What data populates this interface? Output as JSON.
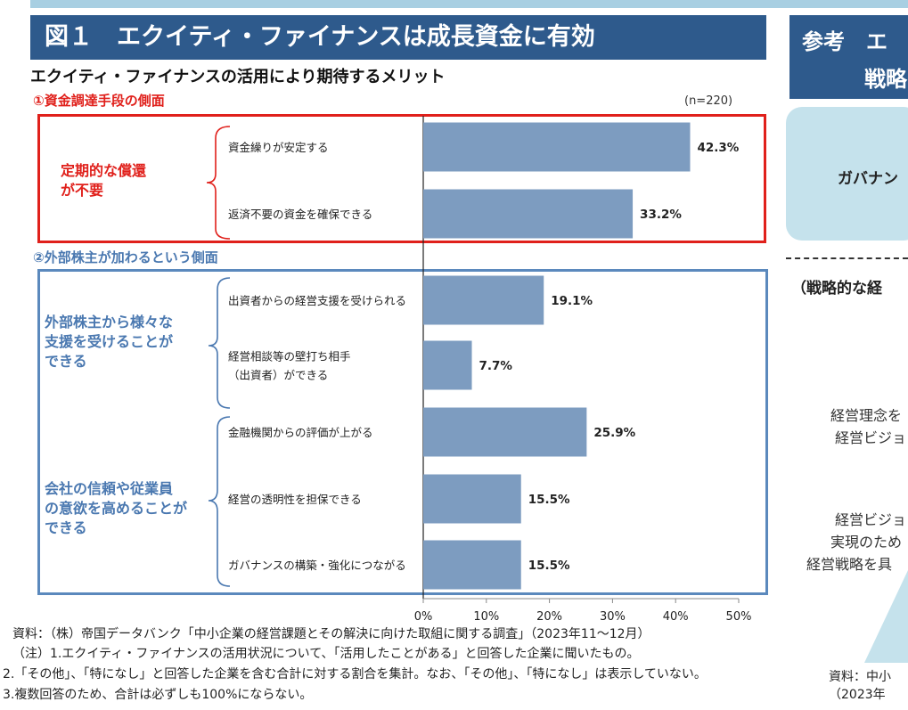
{
  "figure": {
    "title": "図１　エクイティ・ファイナンスは成長資金に有効",
    "subtitle": "エクイティ・ファイナンスの活用により期待するメリット",
    "sample_size": "(n=220)",
    "section1": "①資金調達手段の側面",
    "section2": "②外部株主が加わるという側面",
    "groups": {
      "red": [
        "定期的な償還",
        "が不要"
      ],
      "blue1": [
        "外部株主から様々な",
        "支援を受けることが",
        "できる"
      ],
      "blue2": [
        "会社の信頼や従業員",
        "の意欲を高めることが",
        "できる"
      ]
    },
    "colors": {
      "bar": "#7d9cc0",
      "red": "#e0201b",
      "blue": "#4a78b0",
      "header": "#2e5a8c"
    }
  },
  "chart_data": {
    "type": "bar",
    "orientation": "horizontal",
    "categories": [
      [
        "資金繰りが安定する"
      ],
      [
        "返済不要の資金を確保できる"
      ],
      [
        "出資者からの経営支援を受けられる"
      ],
      [
        "経営相談等の壁打ち相手",
        "（出資者）ができる"
      ],
      [
        "金融機関からの評価が上がる"
      ],
      [
        "経営の透明性を担保できる"
      ],
      [
        "ガバナンスの構築・強化につながる"
      ]
    ],
    "values": [
      42.3,
      33.2,
      19.1,
      7.7,
      25.9,
      15.5,
      15.5
    ],
    "value_labels": [
      "42.3%",
      "33.2%",
      "19.1%",
      "7.7%",
      "25.9%",
      "15.5%",
      "15.5%"
    ],
    "xlim": [
      0,
      50
    ],
    "ticks": [
      "0%",
      "10%",
      "20%",
      "30%",
      "40%",
      "50%"
    ],
    "unit": "%"
  },
  "notes": [
    "資料：（株）帝国データバンク「中小企業の経営課題とその解決に向けた取組に関する調査」（2023年11～12月）",
    "（注）1.エクイティ・ファイナンスの活用状況について、「活用したことがある」と回答した企業に聞いたもの。",
    "2.「その他」、「特になし」と回答した企業を含む合計に対する割合を集計。なお、「その他」、「特になし」は表示していない。",
    "3.複数回答のため、合計は必ずしも100%にならない。"
  ],
  "right_panel": {
    "title_line1": "参考　エ",
    "title_line2": "戦略",
    "card_text": "ガバナン",
    "strategy_label": "（戦略的な経",
    "text1": [
      "経営理念を",
      "経営ビジョ"
    ],
    "text2": [
      "経営ビジョ",
      "実現のため",
      "経営戦略を具"
    ],
    "source": [
      "資料：中小",
      "（2023年"
    ]
  }
}
